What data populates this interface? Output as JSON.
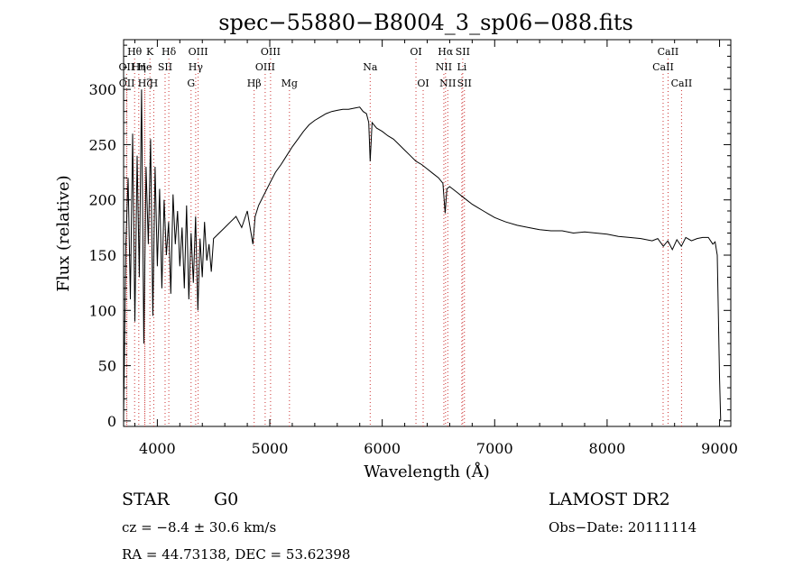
{
  "chart_data": {
    "type": "line",
    "title": "spec−55880−B8004_3_sp06−088.fits",
    "xlabel": "Wavelength (Å)",
    "ylabel": "Flux (relative)",
    "xlim": [
      3700,
      9100
    ],
    "ylim": [
      -5,
      345
    ],
    "xticks": [
      4000,
      5000,
      6000,
      7000,
      8000,
      9000
    ],
    "yticks": [
      0,
      50,
      100,
      150,
      200,
      250,
      300
    ],
    "grid": false,
    "line_color": "#000000",
    "marker_color": "#cc3333",
    "spectral_lines": [
      {
        "label": "Hθ",
        "wavelength": 3798,
        "row": 0
      },
      {
        "label": "OII",
        "wavelength": 3727,
        "row": 1
      },
      {
        "label": "OII",
        "wavelength": 3729,
        "row": 2
      },
      {
        "label": "Hη",
        "wavelength": 3835,
        "row": 1
      },
      {
        "label": "Hζ",
        "wavelength": 3889,
        "row": 2
      },
      {
        "label": "He",
        "wavelength": 3888,
        "row": 1
      },
      {
        "label": "K",
        "wavelength": 3934,
        "row": 0
      },
      {
        "label": "H",
        "wavelength": 3968,
        "row": 2
      },
      {
        "label": "SII",
        "wavelength": 4069,
        "row": 1
      },
      {
        "label": "Hδ",
        "wavelength": 4102,
        "row": 0
      },
      {
        "label": "G",
        "wavelength": 4300,
        "row": 2
      },
      {
        "label": "Hγ",
        "wavelength": 4341,
        "row": 1
      },
      {
        "label": "OIII",
        "wavelength": 4363,
        "row": 0
      },
      {
        "label": "Hβ",
        "wavelength": 4861,
        "row": 2
      },
      {
        "label": "OIII",
        "wavelength": 4959,
        "row": 1
      },
      {
        "label": "OIII",
        "wavelength": 5007,
        "row": 0
      },
      {
        "label": "Mg",
        "wavelength": 5175,
        "row": 2
      },
      {
        "label": "Na",
        "wavelength": 5893,
        "row": 1
      },
      {
        "label": "OI",
        "wavelength": 6300,
        "row": 0
      },
      {
        "label": "OI",
        "wavelength": 6364,
        "row": 2
      },
      {
        "label": "NII",
        "wavelength": 6548,
        "row": 1
      },
      {
        "label": "NII",
        "wavelength": 6583,
        "row": 2
      },
      {
        "label": "Hα",
        "wavelength": 6563,
        "row": 0
      },
      {
        "label": "SII",
        "wavelength": 6716,
        "row": 0
      },
      {
        "label": "Li",
        "wavelength": 6708,
        "row": 1
      },
      {
        "label": "SII",
        "wavelength": 6731,
        "row": 2
      },
      {
        "label": "CaII",
        "wavelength": 8498,
        "row": 1
      },
      {
        "label": "CaII",
        "wavelength": 8542,
        "row": 0
      },
      {
        "label": "CaII",
        "wavelength": 8662,
        "row": 2
      }
    ],
    "spectrum": {
      "x": [
        3700,
        3720,
        3740,
        3760,
        3780,
        3800,
        3820,
        3840,
        3860,
        3880,
        3900,
        3920,
        3940,
        3960,
        3980,
        4000,
        4020,
        4040,
        4060,
        4080,
        4100,
        4120,
        4140,
        4160,
        4180,
        4200,
        4220,
        4240,
        4260,
        4280,
        4300,
        4320,
        4340,
        4360,
        4380,
        4400,
        4420,
        4440,
        4460,
        4480,
        4500,
        4550,
        4600,
        4650,
        4700,
        4750,
        4800,
        4850,
        4870,
        4900,
        4950,
        5000,
        5050,
        5100,
        5150,
        5200,
        5250,
        5300,
        5350,
        5400,
        5450,
        5500,
        5550,
        5600,
        5650,
        5700,
        5750,
        5800,
        5830,
        5860,
        5880,
        5893,
        5910,
        5950,
        6000,
        6050,
        6100,
        6150,
        6200,
        6250,
        6300,
        6350,
        6400,
        6450,
        6500,
        6540,
        6560,
        6575,
        6600,
        6650,
        6700,
        6750,
        6800,
        6850,
        6900,
        6950,
        7000,
        7050,
        7100,
        7200,
        7300,
        7400,
        7500,
        7600,
        7700,
        7800,
        7900,
        8000,
        8100,
        8200,
        8300,
        8400,
        8450,
        8500,
        8540,
        8580,
        8620,
        8660,
        8700,
        8750,
        8800,
        8850,
        8900,
        8940,
        8960,
        8980,
        9000,
        9010
      ],
      "y": [
        5,
        160,
        220,
        110,
        260,
        90,
        240,
        130,
        300,
        70,
        230,
        160,
        255,
        95,
        230,
        140,
        210,
        120,
        200,
        150,
        180,
        115,
        205,
        160,
        190,
        140,
        175,
        120,
        195,
        110,
        170,
        125,
        185,
        100,
        165,
        130,
        180,
        145,
        160,
        135,
        165,
        170,
        175,
        180,
        185,
        175,
        190,
        160,
        185,
        195,
        205,
        215,
        225,
        232,
        240,
        248,
        255,
        262,
        268,
        272,
        275,
        278,
        280,
        281,
        282,
        282,
        283,
        284,
        280,
        278,
        270,
        235,
        270,
        265,
        262,
        258,
        255,
        250,
        245,
        240,
        235,
        232,
        228,
        224,
        220,
        215,
        188,
        210,
        212,
        208,
        204,
        200,
        196,
        193,
        190,
        187,
        184,
        182,
        180,
        177,
        175,
        173,
        172,
        172,
        170,
        171,
        170,
        169,
        167,
        166,
        165,
        163,
        165,
        158,
        163,
        155,
        164,
        158,
        166,
        163,
        165,
        166,
        166,
        160,
        162,
        150,
        40,
        0
      ]
    }
  },
  "footer": {
    "object_type": "STAR",
    "subclass": "G0",
    "survey": "LAMOST  DR2",
    "redshift": "cz = −8.4 ± 30.6 km/s",
    "obs_date": "Obs−Date: 20111114",
    "coords": "RA =  44.73138, DEC =  53.62398"
  }
}
